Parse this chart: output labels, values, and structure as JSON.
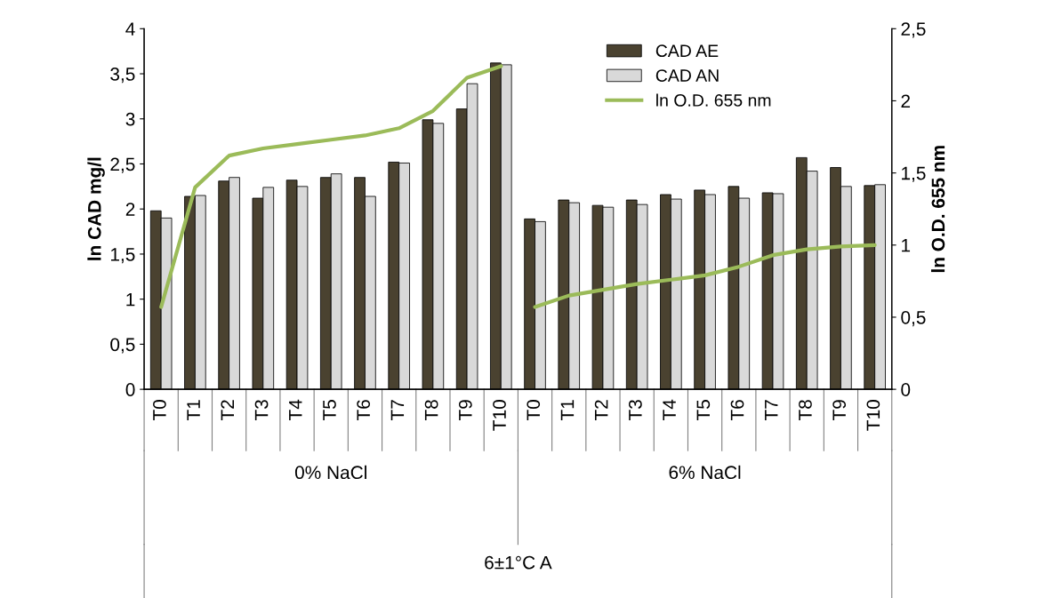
{
  "chart_data": {
    "type": "bar",
    "categories": [
      "T0",
      "T1",
      "T2",
      "T3",
      "T4",
      "T5",
      "T6",
      "T7",
      "T8",
      "T9",
      "T10",
      "T0",
      "T1",
      "T2",
      "T3",
      "T4",
      "T5",
      "T6",
      "T7",
      "T8",
      "T9",
      "T10"
    ],
    "series": [
      {
        "name": "CAD AE",
        "color": "#4a4230",
        "values": [
          1.98,
          2.14,
          2.31,
          2.12,
          2.32,
          2.35,
          2.35,
          2.52,
          2.99,
          3.11,
          3.62,
          1.89,
          2.1,
          2.04,
          2.1,
          2.16,
          2.21,
          2.25,
          2.18,
          2.57,
          2.46,
          2.26
        ]
      },
      {
        "name": "CAD AN",
        "color": "#d9d9d9",
        "values": [
          1.9,
          2.15,
          2.35,
          2.24,
          2.25,
          2.39,
          2.14,
          2.51,
          2.95,
          3.39,
          3.6,
          1.86,
          2.07,
          2.02,
          2.05,
          2.11,
          2.16,
          2.12,
          2.17,
          2.42,
          2.25,
          2.27
        ]
      },
      {
        "name": "ln O.D. 655 nm",
        "type": "line",
        "axis": "y2",
        "color": "#9bbb59",
        "values": [
          0.57,
          1.4,
          1.62,
          1.67,
          1.7,
          1.73,
          1.76,
          1.81,
          1.93,
          2.16,
          2.24,
          null,
          null,
          null,
          null,
          null,
          null,
          null,
          null,
          null,
          null,
          null
        ]
      },
      {
        "type": "line",
        "axis": "y2",
        "color": "#9bbb59",
        "values": [
          null,
          null,
          null,
          null,
          null,
          null,
          null,
          null,
          null,
          null,
          null,
          0.57,
          0.65,
          0.69,
          0.73,
          0.76,
          0.79,
          0.85,
          0.93,
          0.97,
          0.99,
          1.0
        ]
      }
    ],
    "ylabel": "ln CAD mg/l",
    "y2label": "ln O.D. 655 nm",
    "ylim": [
      0,
      4
    ],
    "yticks": [
      0,
      {
        "value": 0.5,
        "label": "0,5"
      },
      1,
      {
        "value": 1.5,
        "label": "1,5"
      },
      2,
      {
        "value": 2.5,
        "label": "2,5"
      },
      3,
      {
        "value": 3.5,
        "label": "3,5"
      },
      4
    ],
    "y2lim": [
      0,
      2.5
    ],
    "y2ticks": [
      0,
      {
        "value": 0.5,
        "label": "0,5"
      },
      1,
      {
        "value": 1.5,
        "label": "1,5"
      },
      2,
      {
        "value": 2.5,
        "label": "2,5"
      }
    ],
    "annotations": [
      "0% NaCl",
      "6% NaCl",
      "6±1°C A"
    ],
    "legend": "top right",
    "grid": false
  }
}
